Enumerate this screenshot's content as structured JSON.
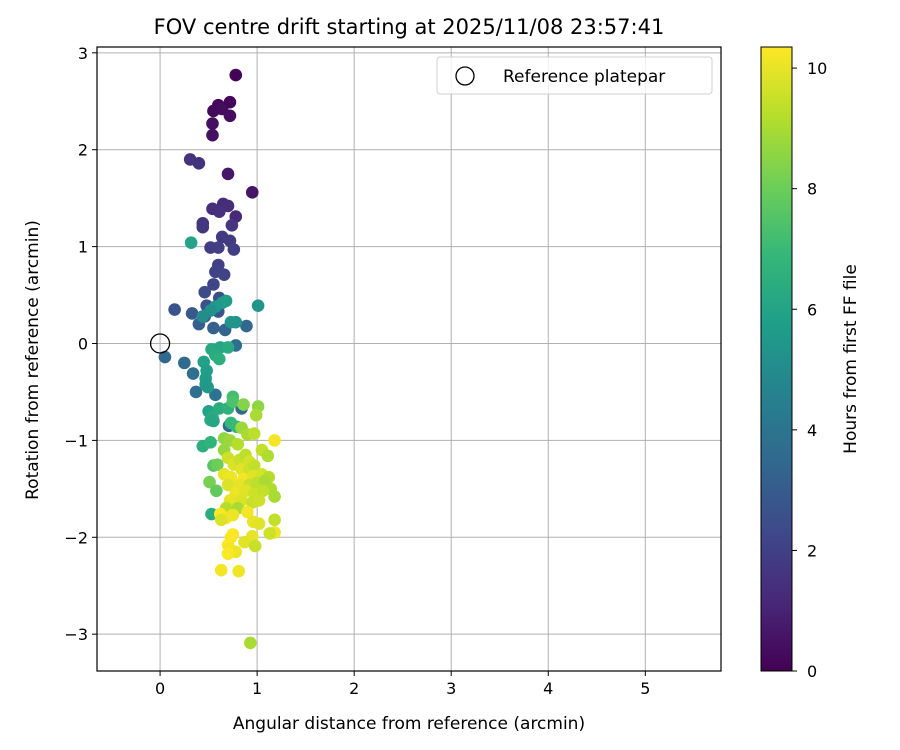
{
  "chart_data": {
    "type": "scatter",
    "title": "FOV centre drift starting at 2025/11/08 23:57:41",
    "xlabel": "Angular distance from reference (arcmin)",
    "ylabel": "Rotation from reference (arcmin)",
    "xlim": [
      -0.65,
      5.78
    ],
    "ylim": [
      -3.38,
      3.06
    ],
    "xticks": [
      0,
      1,
      2,
      3,
      4,
      5
    ],
    "yticks": [
      -3,
      -2,
      -1,
      0,
      1,
      2,
      3
    ],
    "tick_labels_x": [
      "0",
      "1",
      "2",
      "3",
      "4",
      "5"
    ],
    "tick_labels_y": [
      "−3",
      "−2",
      "−1",
      "0",
      "1",
      "2",
      "3"
    ],
    "grid": true,
    "legend": {
      "location": "top-right",
      "entries": [
        {
          "label": "Reference platepar",
          "marker": "hollow-circle",
          "color": "#000000"
        }
      ]
    },
    "reference_point": {
      "x": 0.0,
      "y": 0.0
    },
    "colorbar": {
      "label": "Hours from first FF file",
      "range": [
        0,
        10.35
      ],
      "ticks": [
        0,
        2,
        4,
        6,
        8,
        10
      ],
      "tick_labels": [
        "0",
        "2",
        "4",
        "6",
        "8",
        "10"
      ],
      "colormap": [
        "#440154",
        "#482878",
        "#3e4989",
        "#31688e",
        "#26828e",
        "#1f9e89",
        "#35b779",
        "#6ece58",
        "#b5de2b",
        "#fde725"
      ]
    },
    "points": [
      {
        "x": 0.78,
        "y": 2.77,
        "h": 0.05
      },
      {
        "x": 0.72,
        "y": 2.49,
        "h": 0.15
      },
      {
        "x": 0.6,
        "y": 2.46,
        "h": 0.2
      },
      {
        "x": 0.55,
        "y": 2.4,
        "h": 0.25
      },
      {
        "x": 0.64,
        "y": 2.42,
        "h": 0.3
      },
      {
        "x": 0.72,
        "y": 2.35,
        "h": 0.35
      },
      {
        "x": 0.54,
        "y": 2.27,
        "h": 0.4
      },
      {
        "x": 0.54,
        "y": 2.15,
        "h": 0.45
      },
      {
        "x": 0.95,
        "y": 1.56,
        "h": 0.6
      },
      {
        "x": 0.7,
        "y": 1.75,
        "h": 0.65
      },
      {
        "x": 0.4,
        "y": 1.86,
        "h": 1.5
      },
      {
        "x": 0.31,
        "y": 1.9,
        "h": 1.55
      },
      {
        "x": 0.65,
        "y": 1.44,
        "h": 1.3
      },
      {
        "x": 0.7,
        "y": 1.42,
        "h": 1.35
      },
      {
        "x": 0.54,
        "y": 1.39,
        "h": 1.4
      },
      {
        "x": 0.61,
        "y": 1.36,
        "h": 1.45
      },
      {
        "x": 0.78,
        "y": 1.31,
        "h": 1.2
      },
      {
        "x": 0.44,
        "y": 1.24,
        "h": 1.6
      },
      {
        "x": 0.74,
        "y": 1.22,
        "h": 1.65
      },
      {
        "x": 0.44,
        "y": 1.2,
        "h": 1.7
      },
      {
        "x": 0.64,
        "y": 1.1,
        "h": 1.75
      },
      {
        "x": 0.72,
        "y": 1.06,
        "h": 1.8
      },
      {
        "x": 0.52,
        "y": 0.99,
        "h": 1.85
      },
      {
        "x": 0.6,
        "y": 0.99,
        "h": 1.9
      },
      {
        "x": 0.76,
        "y": 0.97,
        "h": 1.95
      },
      {
        "x": 0.6,
        "y": 0.81,
        "h": 2.0
      },
      {
        "x": 0.57,
        "y": 0.74,
        "h": 2.05
      },
      {
        "x": 0.66,
        "y": 0.71,
        "h": 2.1
      },
      {
        "x": 0.55,
        "y": 0.61,
        "h": 2.2
      },
      {
        "x": 0.46,
        "y": 0.53,
        "h": 2.4
      },
      {
        "x": 0.61,
        "y": 0.47,
        "h": 2.5
      },
      {
        "x": 0.48,
        "y": 0.39,
        "h": 2.6
      },
      {
        "x": 0.15,
        "y": 0.35,
        "h": 2.7
      },
      {
        "x": 0.6,
        "y": 0.33,
        "h": 2.8
      },
      {
        "x": 0.33,
        "y": 0.31,
        "h": 2.9
      },
      {
        "x": 0.46,
        "y": 0.28,
        "h": 3.0
      },
      {
        "x": 0.4,
        "y": 0.2,
        "h": 3.1
      },
      {
        "x": 0.55,
        "y": 0.16,
        "h": 3.2
      },
      {
        "x": 0.67,
        "y": 0.14,
        "h": 3.3
      },
      {
        "x": 0.89,
        "y": 0.18,
        "h": 3.4
      },
      {
        "x": 0.05,
        "y": -0.14,
        "h": 3.5
      },
      {
        "x": 0.25,
        "y": -0.2,
        "h": 3.6
      },
      {
        "x": 0.34,
        "y": -0.31,
        "h": 3.7
      },
      {
        "x": 0.37,
        "y": -0.5,
        "h": 3.8
      },
      {
        "x": 0.57,
        "y": -0.53,
        "h": 3.9
      },
      {
        "x": 0.78,
        "y": -0.02,
        "h": 3.7
      },
      {
        "x": 0.84,
        "y": -0.67,
        "h": 3.6
      },
      {
        "x": 0.71,
        "y": -0.85,
        "h": 3.5
      },
      {
        "x": 1.01,
        "y": 0.39,
        "h": 5.4
      },
      {
        "x": 0.57,
        "y": 0.38,
        "h": 5.5
      },
      {
        "x": 0.64,
        "y": 0.42,
        "h": 5.6
      },
      {
        "x": 0.68,
        "y": 0.44,
        "h": 5.7
      },
      {
        "x": 0.52,
        "y": 0.34,
        "h": 5.2
      },
      {
        "x": 0.44,
        "y": 0.28,
        "h": 5.0
      },
      {
        "x": 0.73,
        "y": 0.22,
        "h": 5.3
      },
      {
        "x": 0.78,
        "y": 0.22,
        "h": 5.35
      },
      {
        "x": 0.32,
        "y": 1.04,
        "h": 6.0
      },
      {
        "x": 0.53,
        "y": -0.06,
        "h": 6.2
      },
      {
        "x": 0.62,
        "y": -0.04,
        "h": 6.1
      },
      {
        "x": 0.7,
        "y": -0.04,
        "h": 6.3
      },
      {
        "x": 0.57,
        "y": -0.12,
        "h": 6.4
      },
      {
        "x": 0.61,
        "y": -0.16,
        "h": 6.5
      },
      {
        "x": 0.45,
        "y": -0.19,
        "h": 5.9
      },
      {
        "x": 0.48,
        "y": -0.28,
        "h": 5.8
      },
      {
        "x": 0.47,
        "y": -0.36,
        "h": 5.7
      },
      {
        "x": 0.47,
        "y": -0.42,
        "h": 5.6
      },
      {
        "x": 0.49,
        "y": -0.45,
        "h": 5.5
      },
      {
        "x": 0.5,
        "y": -0.7,
        "h": 6.0
      },
      {
        "x": 0.52,
        "y": -0.79,
        "h": 6.2
      },
      {
        "x": 0.54,
        "y": -0.76,
        "h": 6.3
      },
      {
        "x": 0.55,
        "y": -0.8,
        "h": 6.1
      },
      {
        "x": 0.61,
        "y": -0.67,
        "h": 6.4
      },
      {
        "x": 0.7,
        "y": -0.67,
        "h": 6.6
      },
      {
        "x": 0.75,
        "y": -0.55,
        "h": 7.2
      },
      {
        "x": 0.75,
        "y": -0.6,
        "h": 7.4
      },
      {
        "x": 0.86,
        "y": -0.63,
        "h": 8.4
      },
      {
        "x": 1.01,
        "y": -0.65,
        "h": 8.6
      },
      {
        "x": 0.73,
        "y": -0.82,
        "h": 6.9
      },
      {
        "x": 0.79,
        "y": -0.86,
        "h": 7.0
      },
      {
        "x": 0.84,
        "y": -0.87,
        "h": 8.8
      },
      {
        "x": 0.99,
        "y": -0.74,
        "h": 9.0
      },
      {
        "x": 0.44,
        "y": -1.06,
        "h": 6.5
      },
      {
        "x": 0.52,
        "y": -1.02,
        "h": 6.7
      },
      {
        "x": 0.55,
        "y": -1.26,
        "h": 7.6
      },
      {
        "x": 0.59,
        "y": -1.25,
        "h": 8.0
      },
      {
        "x": 0.51,
        "y": -1.43,
        "h": 8.2
      },
      {
        "x": 0.58,
        "y": -1.52,
        "h": 7.8
      },
      {
        "x": 0.53,
        "y": -1.76,
        "h": 6.4
      },
      {
        "x": 0.66,
        "y": -0.98,
        "h": 8.6
      },
      {
        "x": 0.72,
        "y": -1.0,
        "h": 8.8
      },
      {
        "x": 0.8,
        "y": -1.04,
        "h": 9.2
      },
      {
        "x": 0.9,
        "y": -0.94,
        "h": 9.0
      },
      {
        "x": 0.97,
        "y": -0.93,
        "h": 9.3
      },
      {
        "x": 1.18,
        "y": -1.0,
        "h": 10.2
      },
      {
        "x": 1.05,
        "y": -1.1,
        "h": 9.4
      },
      {
        "x": 1.11,
        "y": -1.16,
        "h": 9.1
      },
      {
        "x": 0.66,
        "y": -1.1,
        "h": 8.7
      },
      {
        "x": 0.7,
        "y": -1.18,
        "h": 9.6
      },
      {
        "x": 0.76,
        "y": -1.25,
        "h": 9.8
      },
      {
        "x": 0.82,
        "y": -1.2,
        "h": 9.5
      },
      {
        "x": 0.88,
        "y": -1.15,
        "h": 9.3
      },
      {
        "x": 0.92,
        "y": -1.22,
        "h": 9.7
      },
      {
        "x": 0.84,
        "y": -1.3,
        "h": 9.9
      },
      {
        "x": 0.92,
        "y": -1.3,
        "h": 9.6
      },
      {
        "x": 0.97,
        "y": -1.26,
        "h": 9.4
      },
      {
        "x": 0.66,
        "y": -1.35,
        "h": 10.0
      },
      {
        "x": 0.73,
        "y": -1.38,
        "h": 10.1
      },
      {
        "x": 0.86,
        "y": -1.4,
        "h": 10.2
      },
      {
        "x": 0.96,
        "y": -1.37,
        "h": 9.9
      },
      {
        "x": 1.05,
        "y": -1.35,
        "h": 9.7
      },
      {
        "x": 1.12,
        "y": -1.38,
        "h": 9.2
      },
      {
        "x": 0.7,
        "y": -1.46,
        "h": 9.8
      },
      {
        "x": 0.82,
        "y": -1.46,
        "h": 10.0
      },
      {
        "x": 0.92,
        "y": -1.46,
        "h": 9.5
      },
      {
        "x": 1.0,
        "y": -1.44,
        "h": 9.3
      },
      {
        "x": 1.08,
        "y": -1.42,
        "h": 9.0
      },
      {
        "x": 1.14,
        "y": -1.5,
        "h": 9.1
      },
      {
        "x": 0.78,
        "y": -1.55,
        "h": 10.1
      },
      {
        "x": 0.88,
        "y": -1.52,
        "h": 9.9
      },
      {
        "x": 0.97,
        "y": -1.55,
        "h": 9.6
      },
      {
        "x": 1.06,
        "y": -1.52,
        "h": 9.4
      },
      {
        "x": 1.18,
        "y": -1.58,
        "h": 9.0
      },
      {
        "x": 0.72,
        "y": -1.62,
        "h": 10.0
      },
      {
        "x": 0.84,
        "y": -1.62,
        "h": 9.8
      },
      {
        "x": 0.95,
        "y": -1.64,
        "h": 9.5
      },
      {
        "x": 1.02,
        "y": -1.62,
        "h": 9.6
      },
      {
        "x": 0.68,
        "y": -1.7,
        "h": 9.2
      },
      {
        "x": 0.8,
        "y": -1.7,
        "h": 9.0
      },
      {
        "x": 0.9,
        "y": -1.74,
        "h": 10.2
      },
      {
        "x": 0.62,
        "y": -1.76,
        "h": 10.3
      },
      {
        "x": 0.68,
        "y": -1.8,
        "h": 10.2
      },
      {
        "x": 0.75,
        "y": -1.77,
        "h": 10.1
      },
      {
        "x": 0.96,
        "y": -1.84,
        "h": 10.0
      },
      {
        "x": 1.02,
        "y": -1.86,
        "h": 9.9
      },
      {
        "x": 0.63,
        "y": -1.82,
        "h": 9.8
      },
      {
        "x": 1.18,
        "y": -1.82,
        "h": 9.4
      },
      {
        "x": 1.18,
        "y": -1.95,
        "h": 10.1
      },
      {
        "x": 1.13,
        "y": -1.96,
        "h": 9.6
      },
      {
        "x": 0.73,
        "y": -2.0,
        "h": 10.2
      },
      {
        "x": 0.75,
        "y": -1.97,
        "h": 10.3
      },
      {
        "x": 0.95,
        "y": -1.99,
        "h": 10.0
      },
      {
        "x": 0.87,
        "y": -2.05,
        "h": 9.9
      },
      {
        "x": 0.98,
        "y": -2.09,
        "h": 9.5
      },
      {
        "x": 0.7,
        "y": -2.08,
        "h": 10.3
      },
      {
        "x": 0.72,
        "y": -2.12,
        "h": 10.2
      },
      {
        "x": 0.78,
        "y": -2.15,
        "h": 10.1
      },
      {
        "x": 0.7,
        "y": -2.17,
        "h": 10.3
      },
      {
        "x": 0.63,
        "y": -2.34,
        "h": 10.2
      },
      {
        "x": 0.81,
        "y": -2.35,
        "h": 10.1
      },
      {
        "x": 0.93,
        "y": -3.09,
        "h": 9.0
      }
    ]
  }
}
